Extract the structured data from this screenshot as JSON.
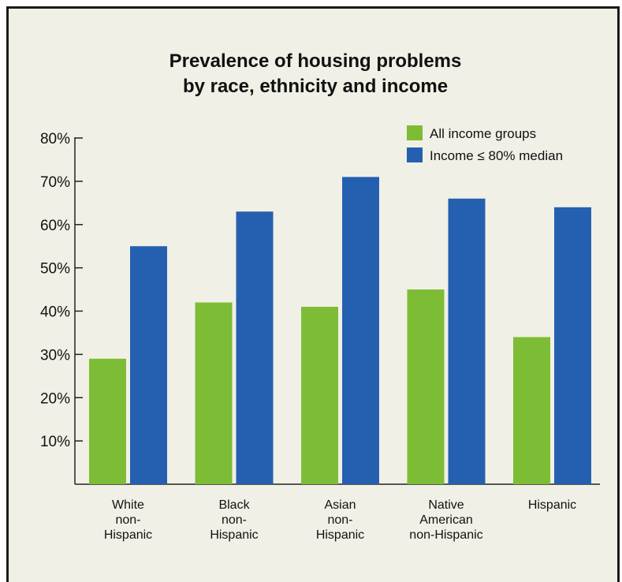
{
  "chart_data": {
    "type": "bar",
    "title": [
      "Prevalence of housing problems",
      "by race, ethnicity and income"
    ],
    "xlabel": "",
    "ylabel": "",
    "categories": [
      [
        "White",
        "non-",
        "Hispanic"
      ],
      [
        "Black",
        "non-",
        "Hispanic"
      ],
      [
        "Asian",
        "non-",
        "Hispanic"
      ],
      [
        "Native",
        "American",
        "non-Hispanic"
      ],
      [
        "Hispanic"
      ]
    ],
    "series": [
      {
        "name": "All income groups",
        "color": "#7dbd35",
        "values": [
          29,
          42,
          41,
          45,
          34
        ]
      },
      {
        "name": "Income ≤ 80% median",
        "color": "#2560b0",
        "values": [
          55,
          63,
          71,
          66,
          64
        ]
      }
    ],
    "ylim": [
      0,
      80
    ],
    "yticks": [
      10,
      20,
      30,
      40,
      50,
      60,
      70,
      80
    ],
    "ytick_labels": [
      "10%",
      "20%",
      "30%",
      "40%",
      "50%",
      "60%",
      "70%",
      "80%"
    ],
    "grid": false,
    "legend_position": "top-right"
  }
}
